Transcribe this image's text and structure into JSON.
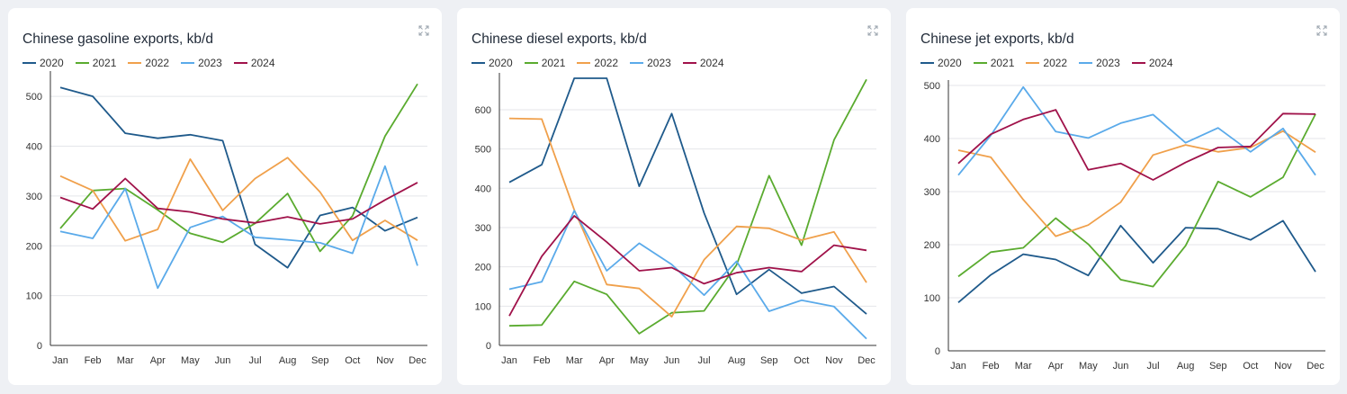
{
  "colors": {
    "2020": "#1f5a8b",
    "2021": "#5aab2f",
    "2022": "#f0a04b",
    "2023": "#5aaaea",
    "2024": "#a0124a",
    "grid": "#e4e6ea",
    "axis": "#333333",
    "tick": "#333333"
  },
  "expand_icon": "expand-icon",
  "charts": [
    {
      "chart_data": {
        "type": "line",
        "title": "Chinese gasoline exports, kb/d",
        "categories": [
          "Jan",
          "Feb",
          "Mar",
          "Apr",
          "May",
          "Jun",
          "Jul",
          "Aug",
          "Sep",
          "Oct",
          "Nov",
          "Dec"
        ],
        "yticks": [
          0,
          100,
          200,
          300,
          400,
          500
        ],
        "ylim": [
          0,
          540
        ],
        "legend": "top-left",
        "grid": true,
        "series": [
          {
            "name": "2020",
            "values": [
              518,
              500,
              426,
              416,
              423,
              411,
              203,
              156,
              261,
              277,
              230,
              257
            ]
          },
          {
            "name": "2021",
            "values": [
              235,
              311,
              315,
              272,
              225,
              207,
              245,
              305,
              189,
              260,
              420,
              525
            ]
          },
          {
            "name": "2022",
            "values": [
              340,
              311,
              210,
              233,
              374,
              271,
              335,
              377,
              308,
              211,
              251,
              211
            ]
          },
          {
            "name": "2023",
            "values": [
              229,
              215,
              315,
              115,
              237,
              259,
              217,
              212,
              206,
              185,
              360,
              160
            ]
          },
          {
            "name": "2024",
            "values": [
              297,
              274,
              335,
              275,
              268,
              254,
              246,
              258,
              244,
              254,
              292,
              327
            ]
          }
        ]
      }
    },
    {
      "chart_data": {
        "type": "line",
        "title": "Chinese diesel exports, kb/d",
        "categories": [
          "Jan",
          "Feb",
          "Mar",
          "Apr",
          "May",
          "Jun",
          "Jul",
          "Aug",
          "Sep",
          "Oct",
          "Nov",
          "Dec"
        ],
        "yticks": [
          0,
          100,
          200,
          300,
          400,
          500,
          600
        ],
        "ylim": [
          0,
          680
        ],
        "legend": "top-left",
        "grid": true,
        "series": [
          {
            "name": "2020",
            "values": [
              415,
              460,
              680,
              680,
              405,
              590,
              337,
              130,
              193,
              133,
              150,
              80
            ]
          },
          {
            "name": "2021",
            "values": [
              50,
              52,
              163,
              130,
              30,
              83,
              88,
              205,
              432,
              255,
              523,
              677
            ]
          },
          {
            "name": "2022",
            "values": [
              578,
              576,
              345,
              155,
              145,
              73,
              218,
              303,
              298,
              268,
              289,
              160
            ]
          },
          {
            "name": "2023",
            "values": [
              143,
              162,
              343,
              190,
              260,
              206,
              128,
              214,
              87,
              115,
              99,
              17
            ]
          },
          {
            "name": "2024",
            "values": [
              75,
              227,
              330,
              263,
              190,
              198,
              157,
              185,
              198,
              188,
              255,
              242
            ]
          }
        ]
      }
    },
    {
      "chart_data": {
        "type": "line",
        "title": "Chinese jet exports, kb/d",
        "categories": [
          "Jan",
          "Feb",
          "Mar",
          "Apr",
          "May",
          "Jun",
          "Jul",
          "Aug",
          "Sep",
          "Oct",
          "Nov",
          "Dec"
        ],
        "yticks": [
          0,
          100,
          200,
          300,
          400,
          500
        ],
        "ylim": [
          0,
          500
        ],
        "legend": "top-left",
        "grid": true,
        "series": [
          {
            "name": "2020",
            "values": [
              91,
              143,
              182,
              172,
              142,
              236,
              166,
              232,
              230,
              209,
              245,
              149
            ]
          },
          {
            "name": "2021",
            "values": [
              140,
              186,
              194,
              250,
              201,
              134,
              121,
              198,
              319,
              290,
              327,
              446
            ]
          },
          {
            "name": "2022",
            "values": [
              378,
              365,
              285,
              216,
              237,
              280,
              369,
              388,
              375,
              383,
              414,
              374
            ]
          },
          {
            "name": "2023",
            "values": [
              331,
              406,
              497,
              413,
              401,
              429,
              445,
              392,
              420,
              375,
              419,
              331
            ]
          },
          {
            "name": "2024",
            "values": [
              353,
              408,
              436,
              454,
              341,
              353,
              322,
              355,
              383,
              385,
              447,
              446
            ]
          }
        ]
      }
    }
  ]
}
